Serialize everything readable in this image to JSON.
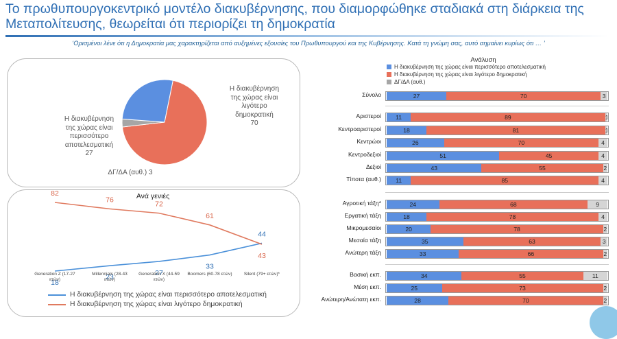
{
  "header": {
    "title": "Το πρωθυπουργοκεντρικό μοντέλο διακυβέρνησης, που διαμορφώθηκε σταδιακά στη διάρκεια της Μεταπολίτευσης, θεωρείται ότι περιορίζει τη δημοκρατία",
    "subtitle": "‘Ορισμένοι λένε ότι η Δημοκρατία μας χαρακτηρίζεται από αυξημένες εξουσίες του Πρωθυπουργού και της Κυβέρνησης. Κατά τη γνώμη σας, αυτό σημαίνει κυρίως ότι … ’"
  },
  "colors": {
    "blue": "#5b8fe0",
    "red": "#e8705a",
    "grey": "#a6a6a6",
    "line_blue": "#4a90d9",
    "line_red": "#e07a5f"
  },
  "pie": {
    "labels": {
      "red": [
        "Η διακυβέρνηση",
        "της χώρας είναι",
        "λιγότερο",
        "δημοκρατική",
        "70"
      ],
      "blue": [
        "Η διακυβέρνηση",
        "της χώρας είναι",
        "περισσότερο",
        "αποτελεσματική",
        "27"
      ],
      "grey": "ΔΓ/ΔΑ (αυθ.) 3"
    }
  },
  "generations": {
    "title": "Ανά γενιές",
    "legend_blue": "Η διακυβέρνηση της χώρας είναι περισσότερο αποτελεσματική",
    "legend_red": "Η διακυβέρνηση της χώρας είναι λιγότερο δημοκρατική"
  },
  "analysis": {
    "title": "Ανάλυση",
    "legend": [
      "Η διακυβέρνηση της χώρας είναι περισσότερο αποτελεσματική",
      "Η διακυβέρνηση της χώρας είναι λιγότερο δημοκρατική",
      "ΔΓ/ΔΑ (αυθ.)"
    ]
  },
  "chart_data": [
    {
      "type": "pie",
      "slices": [
        {
          "label": "Η διακυβέρνηση της χώρας είναι λιγότερο δημοκρατική",
          "value": 70,
          "color": "#e8705a"
        },
        {
          "label": "ΔΓ/ΔΑ (αυθ.)",
          "value": 3,
          "color": "#a6a6a6"
        },
        {
          "label": "Η διακυβέρνηση της χώρας είναι περισσότερο αποτελεσματική",
          "value": 27,
          "color": "#5b8fe0"
        }
      ]
    },
    {
      "type": "line",
      "title": "Ανά γενιές",
      "categories": [
        "Generation Z (17-27 ετών)",
        "Millennials (28-43 ετών)",
        "Generation X (44-59 ετών)",
        "Boomers (60-78 ετών)",
        "Silent (79+ ετών)*"
      ],
      "series": [
        {
          "name": "Η διακυβέρνηση της χώρας είναι περισσότερο αποτελεσματική",
          "values": [
            18,
            23,
            27,
            33,
            44
          ],
          "color": "#4a90d9"
        },
        {
          "name": "Η διακυβέρνηση της χώρας είναι λιγότερο δημοκρατική",
          "values": [
            82,
            76,
            72,
            61,
            43
          ],
          "color": "#e07a5f"
        }
      ],
      "ylim": [
        0,
        100
      ]
    },
    {
      "type": "bar",
      "stacked": true,
      "orientation": "horizontal",
      "title": "Ανάλυση",
      "rows": [
        {
          "label": "Σύνολο",
          "values": [
            27,
            70,
            3
          ]
        },
        {
          "label": "Αριστεροί",
          "values": [
            11,
            89,
            1
          ]
        },
        {
          "label": "Κεντροαριστεροί",
          "values": [
            18,
            81,
            1
          ]
        },
        {
          "label": "Κεντρώοι",
          "values": [
            26,
            70,
            4
          ]
        },
        {
          "label": "Κεντροδεξιοί",
          "values": [
            51,
            45,
            4
          ]
        },
        {
          "label": "Δεξιοί",
          "values": [
            43,
            55,
            2
          ]
        },
        {
          "label": "Τίποτα (αυθ.)",
          "values": [
            11,
            85,
            4
          ]
        },
        {
          "label": "Αγροτική τάξη*",
          "values": [
            24,
            68,
            9
          ]
        },
        {
          "label": "Εργατική τάξη",
          "values": [
            18,
            78,
            4
          ]
        },
        {
          "label": "Μικρομεσαίοι",
          "values": [
            20,
            78,
            2
          ]
        },
        {
          "label": "Μεσαία τάξη",
          "values": [
            35,
            63,
            3
          ]
        },
        {
          "label": "Ανώτερη τάξη",
          "values": [
            33,
            66,
            2
          ]
        },
        {
          "label": "Βασική εκπ.",
          "values": [
            34,
            55,
            11
          ]
        },
        {
          "label": "Μέση εκπ.",
          "values": [
            25,
            73,
            2
          ]
        },
        {
          "label": "Ανώτερη/Ανώτατη εκπ.",
          "values": [
            28,
            70,
            2
          ]
        }
      ]
    }
  ]
}
